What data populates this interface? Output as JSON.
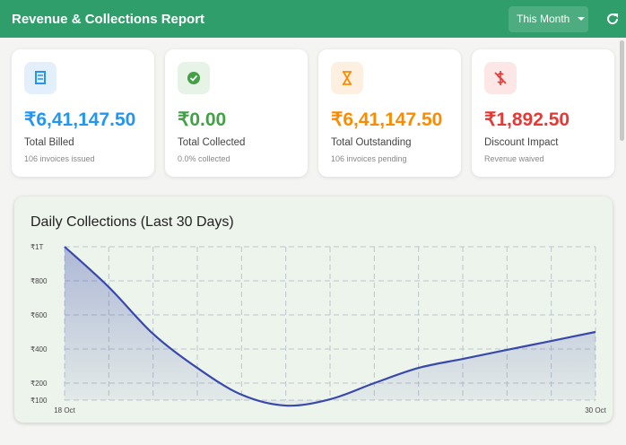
{
  "header": {
    "title": "Revenue & Collections Report",
    "period": "This Month"
  },
  "cards": [
    {
      "value": "₹6,41,147.50",
      "label": "Total Billed",
      "note": "106 invoices issued"
    },
    {
      "value": "₹0.00",
      "label": "Total Collected",
      "note": "0.0% collected"
    },
    {
      "value": "₹6,41,147.50",
      "label": "Total Outstanding",
      "note": "106 invoices pending"
    },
    {
      "value": "₹1,892.50",
      "label": "Discount Impact",
      "note": "Revenue waived"
    }
  ],
  "chart": {
    "type": "line",
    "title": "Daily Collections (Last 30 Days)",
    "categories": [
      "18 Oct",
      null,
      null,
      null,
      null,
      null,
      null,
      null,
      null,
      null,
      null,
      null,
      "30 Oct"
    ],
    "values": [
      1000,
      763,
      489,
      289,
      132,
      68,
      105,
      200,
      289,
      342,
      395,
      447,
      500
    ],
    "color": "#3949ab",
    "ylim": [
      100,
      1000
    ],
    "yticks": [
      {
        "value": 100,
        "label": "₹100"
      },
      {
        "value": 200,
        "label": "₹200"
      },
      {
        "value": 400,
        "label": "₹400"
      },
      {
        "value": 600,
        "label": "₹600"
      },
      {
        "value": 800,
        "label": "₹800"
      },
      {
        "value": 1000,
        "label": "₹1T"
      }
    ],
    "grid": true
  }
}
